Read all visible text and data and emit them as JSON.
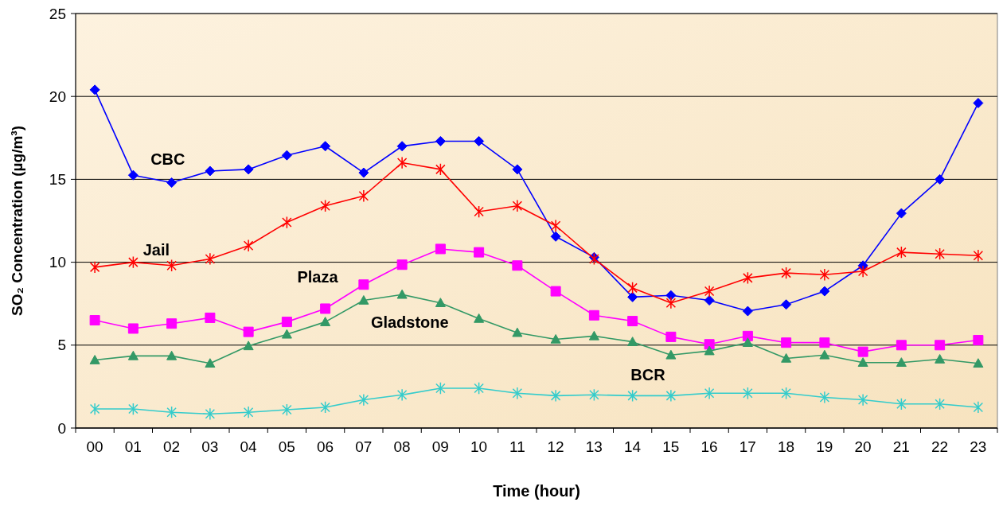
{
  "chart_data": {
    "type": "line",
    "xlabel": "Time (hour)",
    "ylabel": "SO₂ Concentration  (µg/m³)",
    "categories": [
      "00",
      "01",
      "02",
      "03",
      "04",
      "05",
      "06",
      "07",
      "08",
      "09",
      "10",
      "11",
      "12",
      "13",
      "14",
      "15",
      "16",
      "17",
      "18",
      "19",
      "20",
      "21",
      "22",
      "23"
    ],
    "ylim": [
      0,
      25
    ],
    "yticks": [
      0,
      5,
      10,
      15,
      20,
      25
    ],
    "grid": "y",
    "series": [
      {
        "name": "CBC",
        "color": "#0000ff",
        "marker": "diamond",
        "values": [
          20.4,
          15.25,
          14.8,
          15.5,
          15.6,
          16.45,
          17.0,
          15.4,
          17.0,
          17.3,
          17.3,
          15.6,
          11.55,
          10.3,
          7.9,
          8.0,
          7.7,
          7.05,
          7.45,
          8.25,
          9.8,
          12.95,
          15.0,
          19.6
        ]
      },
      {
        "name": "Jail",
        "color": "#ff0000",
        "marker": "cross",
        "values": [
          9.7,
          10.0,
          9.8,
          10.2,
          11.0,
          12.4,
          13.4,
          14.0,
          16.0,
          15.6,
          13.05,
          13.4,
          12.2,
          10.2,
          8.45,
          7.55,
          8.25,
          9.05,
          9.35,
          9.25,
          9.45,
          10.6,
          10.5,
          10.4
        ]
      },
      {
        "name": "Plaza",
        "color": "#ff00ff",
        "marker": "square",
        "values": [
          6.5,
          6.0,
          6.3,
          6.65,
          5.8,
          6.4,
          7.2,
          8.65,
          9.85,
          10.8,
          10.6,
          9.8,
          8.25,
          6.8,
          6.45,
          5.5,
          5.05,
          5.55,
          5.15,
          5.15,
          4.6,
          5.0,
          5.0,
          5.3
        ]
      },
      {
        "name": "Gladstone",
        "color": "#339966",
        "marker": "triangle",
        "values": [
          4.1,
          4.35,
          4.35,
          3.9,
          4.95,
          5.65,
          6.4,
          7.7,
          8.05,
          7.55,
          6.6,
          5.75,
          5.35,
          5.55,
          5.2,
          4.4,
          4.65,
          5.15,
          4.2,
          4.4,
          3.95,
          3.95,
          4.15,
          3.9
        ]
      },
      {
        "name": "BCR",
        "color": "#33cccc",
        "marker": "cross",
        "values": [
          1.15,
          1.15,
          0.95,
          0.85,
          0.95,
          1.1,
          1.25,
          1.7,
          2.0,
          2.4,
          2.4,
          2.1,
          1.95,
          2.0,
          1.95,
          1.95,
          2.1,
          2.1,
          2.1,
          1.85,
          1.7,
          1.45,
          1.45,
          1.25
        ]
      }
    ]
  }
}
